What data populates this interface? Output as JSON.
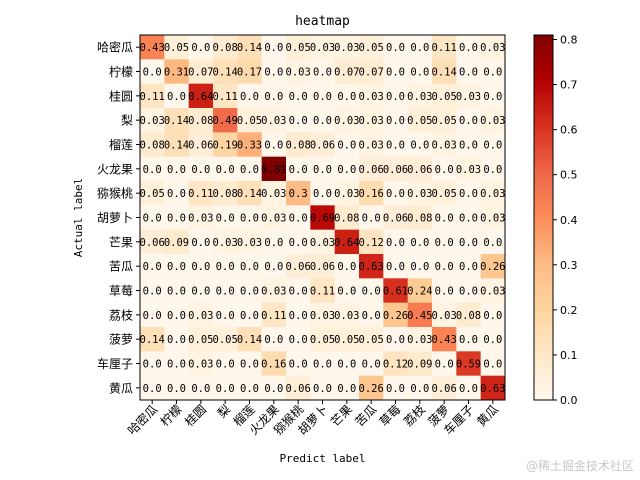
{
  "chart_data": {
    "type": "heatmap",
    "title": "heatmap",
    "xlabel": "Predict label",
    "ylabel": "Actual label",
    "labels": [
      "哈密瓜",
      "柠檬",
      "桂圆",
      "梨",
      "榴莲",
      "火龙果",
      "猕猴桃",
      "胡萝卜",
      "芒果",
      "苦瓜",
      "草莓",
      "荔枝",
      "菠萝",
      "车厘子",
      "黄瓜"
    ],
    "matrix": [
      [
        0.43,
        0.05,
        0.0,
        0.08,
        0.14,
        0.0,
        0.05,
        0.03,
        0.03,
        0.05,
        0.0,
        0.0,
        0.11,
        0.0,
        0.03
      ],
      [
        0.0,
        0.31,
        0.07,
        0.14,
        0.17,
        0.0,
        0.03,
        0.0,
        0.07,
        0.07,
        0.0,
        0.0,
        0.14,
        0.0,
        0.0
      ],
      [
        0.11,
        0.0,
        0.64,
        0.11,
        0.0,
        0.0,
        0.0,
        0.0,
        0.0,
        0.03,
        0.0,
        0.03,
        0.05,
        0.03,
        0.0
      ],
      [
        0.03,
        0.14,
        0.08,
        0.49,
        0.05,
        0.03,
        0.0,
        0.0,
        0.03,
        0.03,
        0.0,
        0.05,
        0.05,
        0.0,
        0.03
      ],
      [
        0.08,
        0.14,
        0.06,
        0.19,
        0.33,
        0.0,
        0.08,
        0.06,
        0.0,
        0.03,
        0.0,
        0.0,
        0.03,
        0.0,
        0.0
      ],
      [
        0.0,
        0.0,
        0.0,
        0.0,
        0.0,
        0.81,
        0.0,
        0.0,
        0.0,
        0.06,
        0.06,
        0.06,
        0.0,
        0.03,
        0.0
      ],
      [
        0.05,
        0.0,
        0.11,
        0.08,
        0.14,
        0.03,
        0.3,
        0.0,
        0.03,
        0.16,
        0.0,
        0.03,
        0.05,
        0.0,
        0.03
      ],
      [
        0.0,
        0.0,
        0.03,
        0.0,
        0.0,
        0.03,
        0.0,
        0.69,
        0.08,
        0.0,
        0.06,
        0.08,
        0.0,
        0.0,
        0.03
      ],
      [
        0.06,
        0.09,
        0.0,
        0.03,
        0.03,
        0.0,
        0.0,
        0.03,
        0.64,
        0.12,
        0.0,
        0.0,
        0.0,
        0.0,
        0.0
      ],
      [
        0.0,
        0.0,
        0.0,
        0.0,
        0.0,
        0.0,
        0.06,
        0.06,
        0.0,
        0.63,
        0.0,
        0.0,
        0.0,
        0.0,
        0.26
      ],
      [
        0.0,
        0.0,
        0.0,
        0.0,
        0.0,
        0.03,
        0.0,
        0.11,
        0.0,
        0.0,
        0.61,
        0.24,
        0.0,
        0.0,
        0.03
      ],
      [
        0.0,
        0.0,
        0.03,
        0.0,
        0.0,
        0.11,
        0.0,
        0.03,
        0.03,
        0.0,
        0.26,
        0.45,
        0.03,
        0.08,
        0.0
      ],
      [
        0.14,
        0.0,
        0.05,
        0.05,
        0.14,
        0.0,
        0.0,
        0.05,
        0.05,
        0.05,
        0.0,
        0.03,
        0.43,
        0.0,
        0.0
      ],
      [
        0.0,
        0.0,
        0.03,
        0.0,
        0.0,
        0.16,
        0.0,
        0.0,
        0.0,
        0.0,
        0.12,
        0.09,
        0.0,
        0.59,
        0.0
      ],
      [
        0.0,
        0.0,
        0.0,
        0.0,
        0.0,
        0.0,
        0.06,
        0.0,
        0.0,
        0.26,
        0.0,
        0.0,
        0.06,
        0.0,
        0.63
      ]
    ],
    "cell_text": [
      [
        "0.43",
        "0.05",
        "0.0",
        "0.08",
        "0.14",
        "0.0",
        "0.05",
        "0.03",
        "0.03",
        "0.05",
        "0.0",
        "0.0",
        "0.11",
        "0.0",
        "0.03"
      ],
      [
        "0.0",
        "0.31",
        "0.07",
        "0.14",
        "0.17",
        "0.0",
        "0.03",
        "0.0",
        "0.07",
        "0.07",
        "0.0",
        "0.0",
        "0.14",
        "0.0",
        "0.0"
      ],
      [
        "0.11",
        "0.0",
        "0.64",
        "0.11",
        "0.0",
        "0.0",
        "0.0",
        "0.0",
        "0.0",
        "0.03",
        "0.0",
        "0.03",
        "0.05",
        "0.03",
        "0.0"
      ],
      [
        "0.03",
        "0.14",
        "0.08",
        "0.49",
        "0.05",
        "0.03",
        "0.0",
        "0.0",
        "0.03",
        "0.03",
        "0.0",
        "0.05",
        "0.05",
        "0.0",
        "0.03"
      ],
      [
        "0.08",
        "0.14",
        "0.06",
        "0.19",
        "0.33",
        "0.0",
        "0.08",
        "0.06",
        "0.0",
        "0.03",
        "0.0",
        "0.0",
        "0.03",
        "0.0",
        "0.0"
      ],
      [
        "0.0",
        "0.0",
        "0.0",
        "0.0",
        "0.0",
        "0.81",
        "0.0",
        "0.0",
        "0.0",
        "0.06",
        "0.06",
        "0.06",
        "0.0",
        "0.03",
        "0.0"
      ],
      [
        "0.05",
        "0.0",
        "0.11",
        "0.08",
        "0.14",
        "0.03",
        "0.3",
        "0.0",
        "0.03",
        "0.16",
        "0.0",
        "0.03",
        "0.05",
        "0.0",
        "0.03"
      ],
      [
        "0.0",
        "0.0",
        "0.03",
        "0.0",
        "0.0",
        "0.03",
        "0.0",
        "0.69",
        "0.08",
        "0.0",
        "0.06",
        "0.08",
        "0.0",
        "0.0",
        "0.03"
      ],
      [
        "0.06",
        "0.09",
        "0.0",
        "0.03",
        "0.03",
        "0.0",
        "0.0",
        "0.03",
        "0.64",
        "0.12",
        "0.0",
        "0.0",
        "0.0",
        "0.0",
        "0.0"
      ],
      [
        "0.0",
        "0.0",
        "0.0",
        "0.0",
        "0.0",
        "0.0",
        "0.06",
        "0.06",
        "0.0",
        "0.63",
        "0.0",
        "0.0",
        "0.0",
        "0.0",
        "0.26"
      ],
      [
        "0.0",
        "0.0",
        "0.0",
        "0.0",
        "0.0",
        "0.03",
        "0.0",
        "0.11",
        "0.0",
        "0.0",
        "0.61",
        "0.24",
        "0.0",
        "0.0",
        "0.03"
      ],
      [
        "0.0",
        "0.0",
        "0.03",
        "0.0",
        "0.0",
        "0.11",
        "0.0",
        "0.03",
        "0.03",
        "0.0",
        "0.26",
        "0.45",
        "0.03",
        "0.08",
        "0.0"
      ],
      [
        "0.14",
        "0.0",
        "0.05",
        "0.05",
        "0.14",
        "0.0",
        "0.0",
        "0.05",
        "0.05",
        "0.05",
        "0.0",
        "0.03",
        "0.43",
        "0.0",
        "0.0"
      ],
      [
        "0.0",
        "0.0",
        "0.03",
        "0.0",
        "0.0",
        "0.16",
        "0.0",
        "0.0",
        "0.0",
        "0.0",
        "0.12",
        "0.09",
        "0.0",
        "0.59",
        "0.0"
      ],
      [
        "0.0",
        "0.0",
        "0.0",
        "0.0",
        "0.0",
        "0.0",
        "0.06",
        "0.0",
        "0.0",
        "0.26",
        "0.0",
        "0.0",
        "0.06",
        "0.0",
        "0.63"
      ]
    ],
    "colorbar": {
      "range": [
        0,
        0.81
      ],
      "ticks": [
        "0.0",
        "0.1",
        "0.2",
        "0.3",
        "0.4",
        "0.5",
        "0.6",
        "0.7",
        "0.8"
      ],
      "tick_values": [
        0,
        0.1,
        0.2,
        0.3,
        0.4,
        0.5,
        0.6,
        0.7,
        0.8
      ],
      "colormap": "OrRd",
      "colors": [
        "#fff7ec",
        "#fee8c8",
        "#fdd49e",
        "#fdbb84",
        "#fc8d59",
        "#ef6548",
        "#d7301f",
        "#b30000",
        "#7f0000"
      ]
    },
    "legend": "none",
    "grid": false
  },
  "watermark": "@稀土掘金技术社区"
}
